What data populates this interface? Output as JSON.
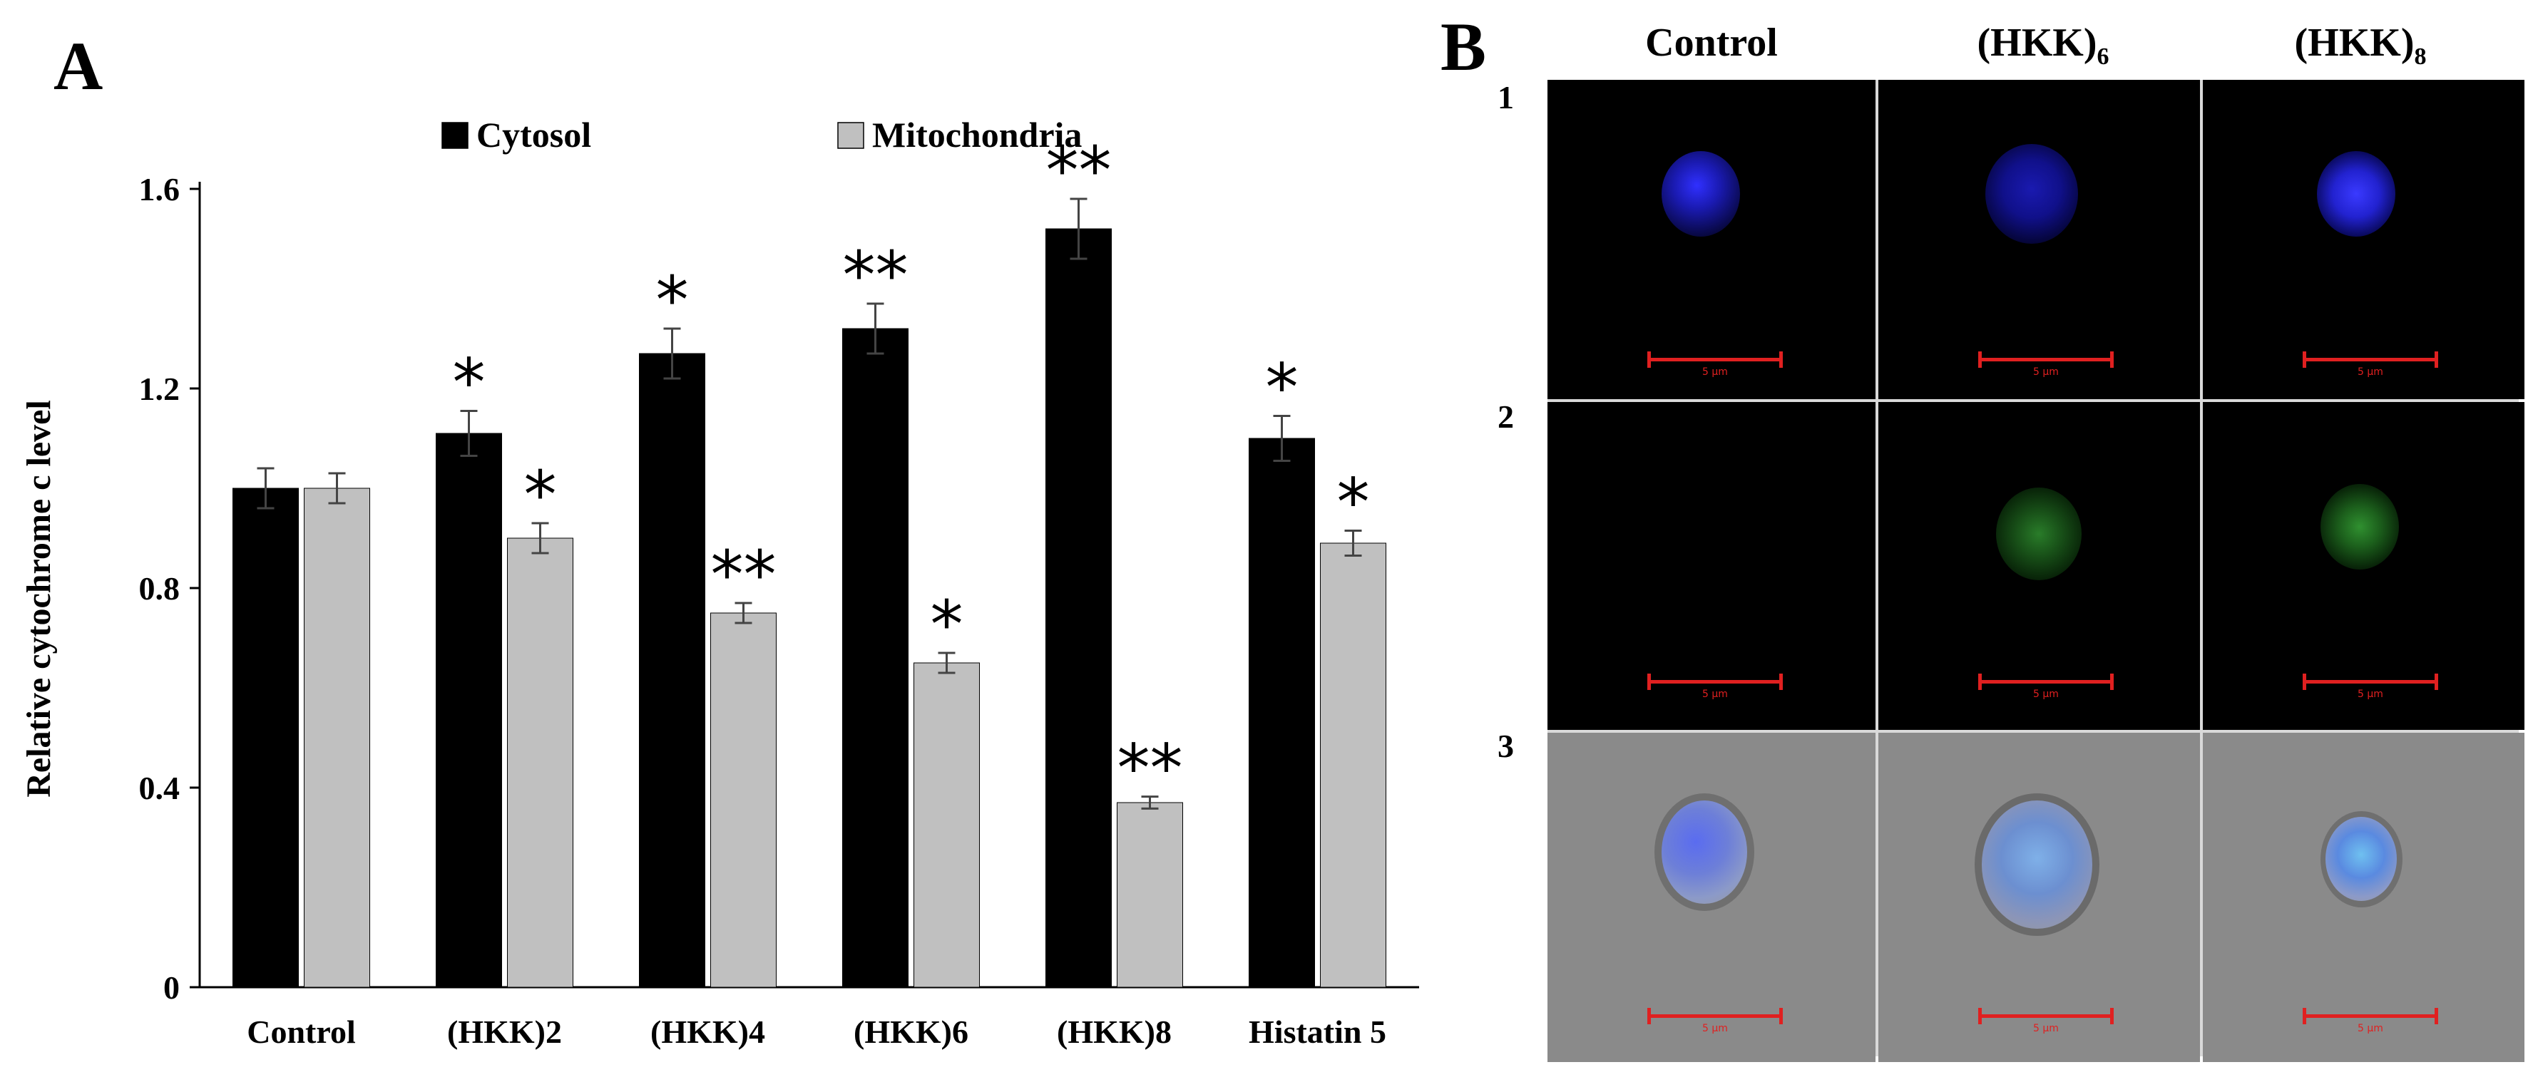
{
  "panel_a": {
    "letter": "A",
    "chart_data": {
      "type": "bar",
      "categories": [
        "Control",
        "(HKK)2",
        "(HKK)4",
        "(HKK)6",
        "(HKK)8",
        "Histatin 5"
      ],
      "series": [
        {
          "name": "Cytosol",
          "color": "#000000",
          "values": [
            1.0,
            1.11,
            1.27,
            1.32,
            1.52,
            1.1
          ],
          "errors": [
            0.04,
            0.045,
            0.05,
            0.05,
            0.06,
            0.045
          ],
          "significance": [
            "",
            "*",
            "*",
            "**",
            "**",
            "*"
          ]
        },
        {
          "name": "Mitochondria",
          "color": "#c0c0c0",
          "values": [
            1.0,
            0.9,
            0.75,
            0.65,
            0.37,
            0.89
          ],
          "errors": [
            0.03,
            0.03,
            0.02,
            0.02,
            0.012,
            0.025
          ],
          "significance": [
            "",
            "*",
            "**",
            "*",
            "**",
            "*"
          ]
        }
      ],
      "ylabel": "Relative cytochrome c level",
      "ylim": [
        0,
        1.6
      ],
      "yticks": [
        "0",
        "0.4",
        "0.8",
        "1.2",
        "1.6"
      ],
      "ytick_values": [
        0,
        0.4,
        0.8,
        1.2,
        1.6
      ],
      "legend_position": "top",
      "grid": false
    }
  },
  "panel_b": {
    "letter": "B",
    "columns": [
      "Control",
      "(HKK)",
      "(HKK)"
    ],
    "column_subscripts": [
      "",
      "6",
      "8"
    ],
    "rows": [
      "1",
      "2",
      "3"
    ],
    "scale_label": "5 μm"
  }
}
